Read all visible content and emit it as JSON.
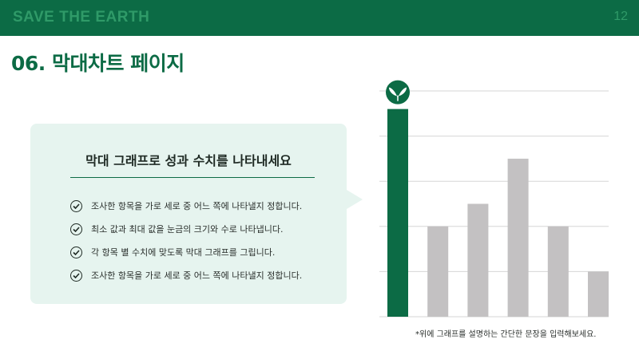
{
  "header": {
    "brand": "SAVE THE EARTH",
    "page_number": "12"
  },
  "page_title": "06. 막대차트 페이지",
  "card": {
    "heading": "막대 그래프로 성과 수치를 나타내세요",
    "bullets": [
      "조사한 항목을 가로 세로 중 어느 쪽에 나타낼지 정합니다.",
      "최소 값과 최대 값을 눈금의 크기와 수로 나타냅니다.",
      "각 항목 별 수치에 맞도록 막대 그래프를 그립니다.",
      "조사한 항목을 가로 세로 중 어느 쪽에 나타낼지 정합니다."
    ]
  },
  "chart_data": {
    "type": "bar",
    "values": [
      46,
      20,
      25,
      35,
      20,
      10
    ],
    "ylim": [
      0,
      50
    ],
    "grid": true,
    "highlight_index": 0,
    "colors": {
      "highlight": "#0c6b45",
      "bar": "#c3c1c2",
      "grid": "#d6d6d6",
      "leaf": "#0c6b45"
    }
  },
  "caption": "*위에 그래프를 설명하는 간단한 문장을 입력해보세요."
}
